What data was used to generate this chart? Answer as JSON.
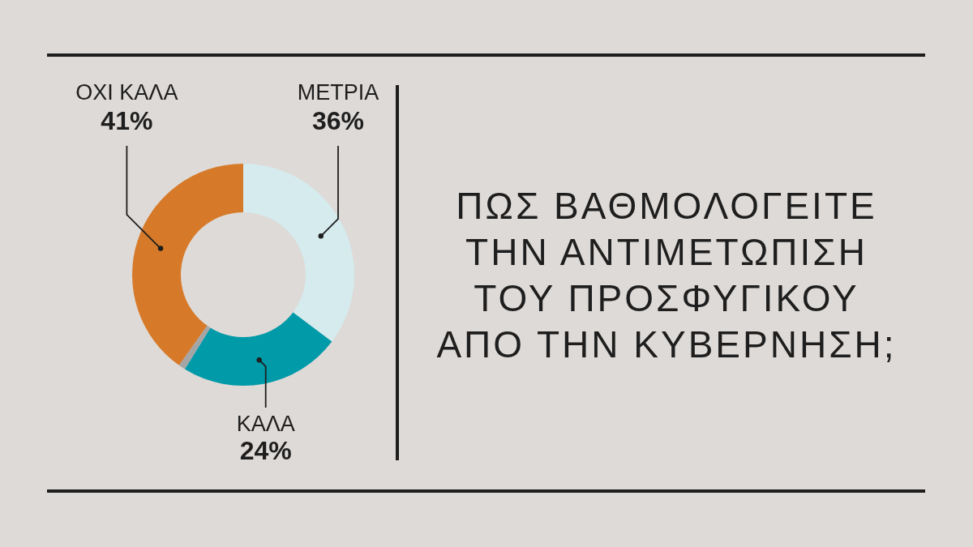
{
  "chart_data": {
    "type": "donut",
    "title": "ΠΩΣ ΒΑΘΜΟΛΟΓΕΙΤΕ\nΤΗΝ ΑΝΤΙΜΕΤΩΠΙΣΗ\nΤΟΥ ΠΡΟΣΦΥΓΙΚΟΥ\nΑΠΟ ΤΗΝ ΚΥΒΕΡΝΗΣΗ;",
    "categories": [
      "ΜΕΤΡΙΑ",
      "ΚΑΛΑ",
      null,
      "ΟΧΙ ΚΑΛΑ"
    ],
    "values": [
      36,
      24,
      1,
      41
    ],
    "colors": [
      "#d5ebee",
      "#019aa9",
      "#a5a5a5",
      "#d67a2a"
    ],
    "value_labels": [
      "36%",
      "24%",
      null,
      "41%"
    ]
  }
}
